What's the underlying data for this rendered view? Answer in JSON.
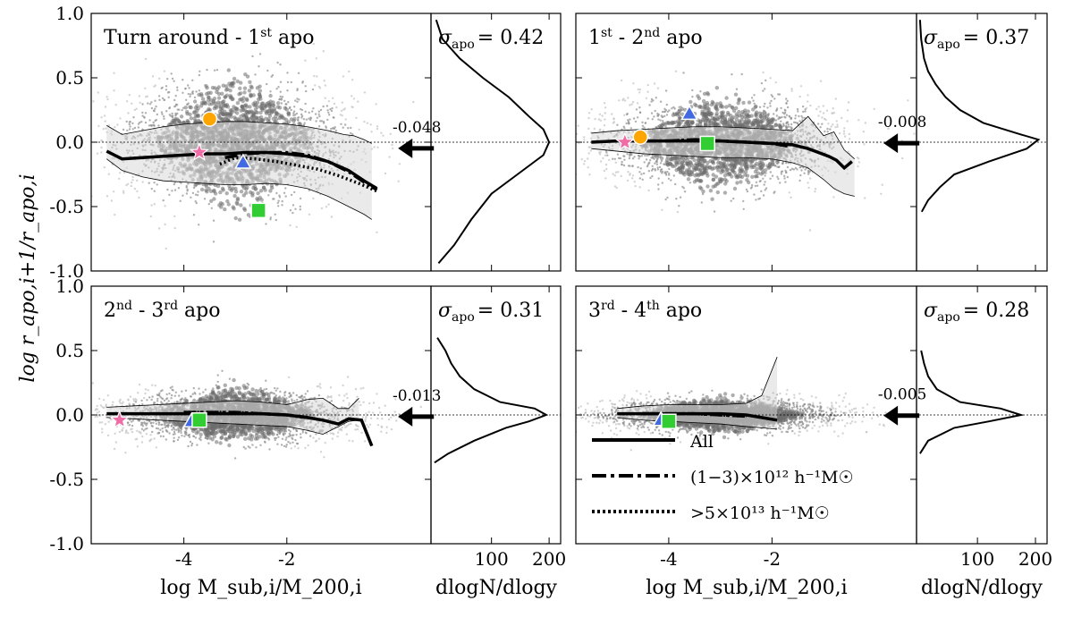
{
  "chart_data": {
    "type": "scatter",
    "figure": {
      "ylabel": "log r_apo,i+1/r_apo,i",
      "xlabel": "log M_sub,i/M_200,i",
      "hist_xlabel": "dlogN/dlogy",
      "ylim": [
        -1.0,
        1.0
      ],
      "xlim": [
        -5.8,
        0.8
      ],
      "y_ticks": [
        -1.0,
        -0.5,
        0.0,
        0.5,
        1.0
      ],
      "y_tick_labels": [
        "-1.0",
        "-0.5",
        "0.0",
        "0.5",
        "1.0"
      ],
      "x_ticks": [
        -4,
        -2
      ],
      "x_tick_labels": [
        "-4",
        "-2"
      ],
      "hist_xlim": [
        -5,
        220
      ],
      "hist_ticks": [
        100,
        200
      ],
      "hist_tick_labels": [
        "100",
        "200"
      ]
    },
    "legend": [
      {
        "label": "All",
        "style": "solid"
      },
      {
        "label": "(1−3)×10¹² h⁻¹M☉",
        "style": "dashdot"
      },
      {
        "label": ">5×10¹³ h⁻¹M☉",
        "style": "dotted"
      }
    ],
    "panels": [
      {
        "title_parts": [
          "Turn around - 1",
          "st",
          " apo"
        ],
        "sigma_label": "σ",
        "sigma_sub": "apo",
        "sigma_value": "= 0.42",
        "arrow_value": "-0.048",
        "arrow_y": -0.048,
        "scatter_sigma_y": 0.22,
        "median_all": {
          "x": [
            -5.5,
            -5.2,
            -4.8,
            -4.4,
            -4.0,
            -3.6,
            -3.2,
            -2.8,
            -2.4,
            -2.0,
            -1.6,
            -1.2,
            -0.8,
            -0.5,
            -0.25
          ],
          "y": [
            -0.07,
            -0.13,
            -0.12,
            -0.11,
            -0.1,
            -0.09,
            -0.09,
            -0.08,
            -0.08,
            -0.09,
            -0.11,
            -0.15,
            -0.22,
            -0.3,
            -0.36
          ]
        },
        "median_lowmass": {
          "x": [
            -3.2,
            -2.8,
            -2.4,
            -2.0,
            -1.6,
            -1.2,
            -0.8,
            -0.5,
            -0.25
          ],
          "y": [
            -0.12,
            -0.09,
            -0.08,
            -0.08,
            -0.1,
            -0.15,
            -0.23,
            -0.31,
            -0.37
          ]
        },
        "median_highmass": {
          "x": [
            -3.3,
            -3.0,
            -2.6,
            -2.2,
            -1.8,
            -1.4,
            -1.0,
            -0.6,
            -0.25
          ],
          "y": [
            -0.17,
            -0.12,
            -0.13,
            -0.15,
            -0.18,
            -0.21,
            -0.26,
            -0.32,
            -0.38
          ]
        },
        "band_upper": {
          "x": [
            -5.5,
            -5.2,
            -4.8,
            -4.4,
            -4.0,
            -3.6,
            -3.2,
            -2.8,
            -2.4,
            -2.0,
            -1.6,
            -1.2,
            -0.9,
            -0.7,
            -0.5,
            -0.35
          ],
          "y": [
            0.13,
            0.06,
            0.09,
            0.12,
            0.14,
            0.15,
            0.16,
            0.16,
            0.15,
            0.14,
            0.12,
            0.09,
            0.06,
            0.05,
            0.02,
            -0.01
          ]
        },
        "band_lower": {
          "x": [
            -5.5,
            -5.2,
            -4.8,
            -4.4,
            -4.0,
            -3.6,
            -3.2,
            -2.8,
            -2.4,
            -2.0,
            -1.6,
            -1.2,
            -0.9,
            -0.7,
            -0.5,
            -0.35
          ],
          "y": [
            -0.13,
            -0.22,
            -0.27,
            -0.3,
            -0.31,
            -0.32,
            -0.33,
            -0.33,
            -0.32,
            -0.33,
            -0.36,
            -0.42,
            -0.48,
            -0.52,
            -0.56,
            -0.6
          ]
        },
        "markers": [
          {
            "shape": "circle",
            "color": "#FFA500",
            "x": -3.5,
            "y": 0.18
          },
          {
            "shape": "star",
            "color": "#F06CA6",
            "x": -3.7,
            "y": -0.08
          },
          {
            "shape": "triangle",
            "color": "#4169E1",
            "x": -2.85,
            "y": -0.16
          },
          {
            "shape": "square",
            "color": "#32CD32",
            "x": -2.55,
            "y": -0.53
          }
        ],
        "hist": {
          "y": [
            -0.94,
            -0.8,
            -0.6,
            -0.4,
            -0.25,
            -0.1,
            0.0,
            0.1,
            0.2,
            0.35,
            0.5,
            0.65,
            0.8,
            0.95
          ],
          "n": [
            8,
            35,
            65,
            100,
            145,
            190,
            200,
            190,
            165,
            130,
            85,
            45,
            15,
            4
          ]
        }
      },
      {
        "title_parts": [
          "1",
          "st",
          " - 2",
          "nd",
          " apo"
        ],
        "sigma_label": "σ",
        "sigma_sub": "apo",
        "sigma_value": "= 0.37",
        "arrow_value": "-0.008",
        "arrow_y": -0.008,
        "scatter_sigma_y": 0.16,
        "median_all": {
          "x": [
            -5.5,
            -5.0,
            -4.5,
            -4.0,
            -3.5,
            -3.0,
            -2.5,
            -2.0,
            -1.6,
            -1.3,
            -1.1,
            -0.9,
            -0.75,
            -0.6,
            -0.45
          ],
          "y": [
            0.0,
            0.01,
            0.01,
            0.01,
            0.01,
            0.01,
            0.0,
            -0.01,
            -0.02,
            -0.05,
            -0.08,
            -0.11,
            -0.14,
            -0.2,
            -0.15
          ]
        },
        "median_lowmass": {
          "x": [
            -4.5,
            -4.0,
            -3.5,
            -3.0,
            -2.5,
            -2.0,
            -1.7
          ],
          "y": [
            0.01,
            0.01,
            0.02,
            0.01,
            0.0,
            -0.01,
            -0.03
          ]
        },
        "median_highmass": {
          "x": [
            -4.0,
            -3.5,
            -3.0,
            -2.5,
            -2.0,
            -1.7
          ],
          "y": [
            0.01,
            0.02,
            0.01,
            0.0,
            -0.01,
            -0.03
          ]
        },
        "band_upper": {
          "x": [
            -5.5,
            -5.0,
            -4.5,
            -4.0,
            -3.5,
            -3.0,
            -2.5,
            -2.0,
            -1.6,
            -1.3,
            -1.0,
            -0.8,
            -0.6,
            -0.4
          ],
          "y": [
            0.07,
            0.09,
            0.1,
            0.11,
            0.12,
            0.12,
            0.11,
            0.1,
            0.09,
            0.2,
            0.05,
            0.08,
            -0.06,
            -0.13
          ]
        },
        "band_lower": {
          "x": [
            -5.5,
            -5.0,
            -4.5,
            -4.0,
            -3.5,
            -3.0,
            -2.5,
            -2.0,
            -1.6,
            -1.3,
            -1.0,
            -0.8,
            -0.6,
            -0.4
          ],
          "y": [
            -0.05,
            -0.07,
            -0.09,
            -0.1,
            -0.11,
            -0.12,
            -0.12,
            -0.13,
            -0.16,
            -0.2,
            -0.29,
            -0.36,
            -0.4,
            -0.42
          ]
        },
        "markers": [
          {
            "shape": "star",
            "color": "#F06CA6",
            "x": -4.85,
            "y": 0.0
          },
          {
            "shape": "circle",
            "color": "#FFA500",
            "x": -4.55,
            "y": 0.04
          },
          {
            "shape": "triangle",
            "color": "#4169E1",
            "x": -3.6,
            "y": 0.22
          },
          {
            "shape": "square",
            "color": "#32CD32",
            "x": -3.25,
            "y": -0.01
          }
        ],
        "hist": {
          "y": [
            -0.54,
            -0.45,
            -0.35,
            -0.25,
            -0.15,
            -0.05,
            0.02,
            0.06,
            0.15,
            0.25,
            0.35,
            0.45,
            0.55,
            0.65,
            0.8,
            0.95
          ],
          "n": [
            4,
            15,
            35,
            60,
            120,
            185,
            205,
            175,
            110,
            70,
            45,
            28,
            15,
            8,
            3,
            1
          ]
        }
      },
      {
        "title_parts": [
          "2",
          "nd",
          " - 3",
          "rd",
          " apo"
        ],
        "sigma_label": "σ",
        "sigma_sub": "apo",
        "sigma_value": "= 0.31",
        "arrow_value": "-0.013",
        "arrow_y": -0.013,
        "scatter_sigma_y": 0.09,
        "median_all": {
          "x": [
            -5.5,
            -5.0,
            -4.5,
            -4.0,
            -3.5,
            -3.0,
            -2.5,
            -2.0,
            -1.6,
            -1.3,
            -1.0,
            -0.8,
            -0.55,
            -0.35
          ],
          "y": [
            0.01,
            0.01,
            0.01,
            0.01,
            0.01,
            0.01,
            0.01,
            0.0,
            -0.02,
            -0.04,
            -0.07,
            -0.03,
            -0.04,
            -0.24
          ]
        },
        "median_lowmass": {
          "x": [
            -4.0,
            -3.5,
            -3.0,
            -2.5,
            -2.0,
            -1.6
          ],
          "y": [
            0.02,
            0.02,
            0.02,
            0.01,
            0.0,
            -0.02
          ]
        },
        "median_highmass": {
          "x": [
            -4.0,
            -3.5,
            -3.0,
            -2.5,
            -2.0,
            -1.6
          ],
          "y": [
            0.02,
            0.02,
            0.02,
            0.01,
            0.0,
            -0.02
          ]
        },
        "band_upper": {
          "x": [
            -5.5,
            -5.0,
            -4.5,
            -4.0,
            -3.5,
            -3.0,
            -2.5,
            -2.0,
            -1.6,
            -1.3,
            -1.0,
            -0.8,
            -0.6
          ],
          "y": [
            0.06,
            0.07,
            0.08,
            0.09,
            0.1,
            0.11,
            0.1,
            0.08,
            0.12,
            0.13,
            0.05,
            0.05,
            0.13
          ]
        },
        "band_lower": {
          "x": [
            -5.5,
            -5.0,
            -4.5,
            -4.0,
            -3.5,
            -3.0,
            -2.5,
            -2.0,
            -1.6,
            -1.3,
            -1.0,
            -0.8,
            -0.6
          ],
          "y": [
            -0.02,
            -0.03,
            -0.04,
            -0.05,
            -0.06,
            -0.07,
            -0.08,
            -0.09,
            -0.12,
            -0.15,
            -0.09,
            -0.05,
            -0.04
          ]
        },
        "markers": [
          {
            "shape": "star",
            "color": "#F06CA6",
            "x": -5.25,
            "y": -0.04
          },
          {
            "shape": "triangle",
            "color": "#4169E1",
            "x": -3.85,
            "y": -0.05
          },
          {
            "shape": "square",
            "color": "#32CD32",
            "x": -3.7,
            "y": -0.04
          }
        ],
        "hist": {
          "y": [
            -0.37,
            -0.3,
            -0.2,
            -0.1,
            -0.05,
            0.0,
            0.05,
            0.1,
            0.2,
            0.3,
            0.4,
            0.5,
            0.6
          ],
          "n": [
            1,
            25,
            70,
            125,
            165,
            195,
            175,
            115,
            70,
            45,
            30,
            20,
            6
          ]
        }
      },
      {
        "title_parts": [
          "3",
          "rd",
          " - 4",
          "th",
          " apo"
        ],
        "sigma_label": "σ",
        "sigma_sub": "apo",
        "sigma_value": "= 0.28",
        "arrow_value": "-0.005",
        "arrow_y": -0.005,
        "scatter_sigma_y": 0.06,
        "median_all": {
          "x": [
            -5.0,
            -4.5,
            -4.0,
            -3.5,
            -3.0,
            -2.5,
            -2.2,
            -1.9
          ],
          "y": [
            0.01,
            0.01,
            0.01,
            0.01,
            0.01,
            0.0,
            -0.02,
            -0.04
          ]
        },
        "median_lowmass": {
          "x": [
            -4.5,
            -4.0,
            -3.5,
            -3.0,
            -2.5
          ],
          "y": [
            0.01,
            0.01,
            0.01,
            0.0,
            -0.01
          ]
        },
        "median_highmass": {
          "x": [
            -4.5,
            -4.0,
            -3.5,
            -3.0,
            -2.5
          ],
          "y": [
            0.01,
            0.01,
            0.01,
            0.0,
            -0.01
          ]
        },
        "band_upper": {
          "x": [
            -5.0,
            -4.5,
            -4.0,
            -3.5,
            -3.0,
            -2.5,
            -2.2,
            -1.9
          ],
          "y": [
            0.05,
            0.07,
            0.08,
            0.08,
            0.08,
            0.09,
            0.15,
            0.45
          ]
        },
        "band_lower": {
          "x": [
            -5.0,
            -4.5,
            -4.0,
            -3.5,
            -3.0,
            -2.5,
            -2.2,
            -1.9
          ],
          "y": [
            -0.02,
            -0.04,
            -0.05,
            -0.06,
            -0.07,
            -0.09,
            -0.1,
            -0.11
          ]
        },
        "markers": [
          {
            "shape": "triangle",
            "color": "#4169E1",
            "x": -4.15,
            "y": -0.04
          },
          {
            "shape": "square",
            "color": "#32CD32",
            "x": -4.0,
            "y": -0.05
          }
        ],
        "hist": {
          "y": [
            -0.3,
            -0.2,
            -0.1,
            -0.05,
            0.0,
            0.05,
            0.1,
            0.2,
            0.3,
            0.4,
            0.5
          ],
          "n": [
            1,
            15,
            60,
            120,
            175,
            140,
            70,
            30,
            15,
            8,
            3
          ]
        }
      }
    ]
  }
}
